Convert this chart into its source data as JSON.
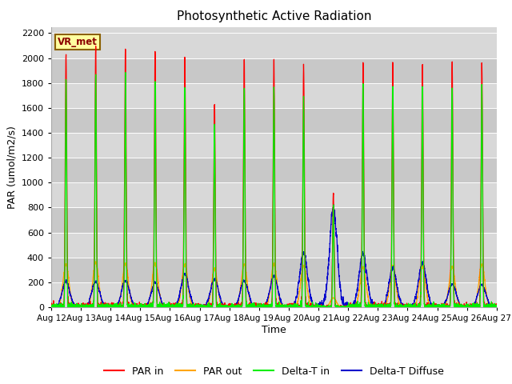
{
  "title": "Photosynthetic Active Radiation",
  "ylabel": "PAR (umol/m2/s)",
  "xlabel": "Time",
  "annotation": "VR_met",
  "ylim": [
    0,
    2250
  ],
  "yticks": [
    0,
    200,
    400,
    600,
    800,
    1000,
    1200,
    1400,
    1600,
    1800,
    2000,
    2200
  ],
  "x_labels": [
    "Aug 12",
    "Aug 13",
    "Aug 14",
    "Aug 15",
    "Aug 16",
    "Aug 17",
    "Aug 18",
    "Aug 19",
    "Aug 20",
    "Aug 21",
    "Aug 22",
    "Aug 23",
    "Aug 24",
    "Aug 25",
    "Aug 26",
    "Aug 27"
  ],
  "legend_labels": [
    "PAR in",
    "PAR out",
    "Delta-T in",
    "Delta-T Diffuse"
  ],
  "legend_colors": [
    "#ff0000",
    "#ffa500",
    "#00ee00",
    "#0000cc"
  ],
  "line_colors": {
    "par_in": "#ff0000",
    "par_out": "#ffa500",
    "delta_t_in": "#00ee00",
    "delta_t_diffuse": "#0000cc"
  },
  "fig_bg": "#ffffff",
  "plot_bg": "#d8d8d8",
  "n_days": 15,
  "points_per_day": 288,
  "day_peaks_par_in": [
    2030,
    2080,
    2060,
    2040,
    2010,
    1640,
    2000,
    1980,
    1930,
    920,
    1950,
    1960,
    1960,
    1950,
    1960
  ],
  "day_peaks_par_out": [
    345,
    360,
    350,
    355,
    345,
    305,
    345,
    345,
    335,
    75,
    320,
    330,
    330,
    325,
    345
  ],
  "day_peaks_delta_t_in": [
    1820,
    1870,
    1840,
    1800,
    1775,
    1460,
    1760,
    1760,
    1700,
    820,
    1790,
    1790,
    1780,
    1770,
    1780
  ],
  "day_peaks_delta_t_diff": [
    205,
    205,
    215,
    195,
    265,
    230,
    215,
    250,
    440,
    790,
    430,
    310,
    355,
    185,
    185
  ],
  "sigma_par_in": 0.025,
  "sigma_par_out": 0.1,
  "sigma_delta_in": 0.022,
  "sigma_delta_diff": 0.13,
  "grid_color": "#ffffff",
  "grid_alpha": 1.0,
  "alt_band_color": "#c8c8c8",
  "alt_band_alpha": 1.0
}
